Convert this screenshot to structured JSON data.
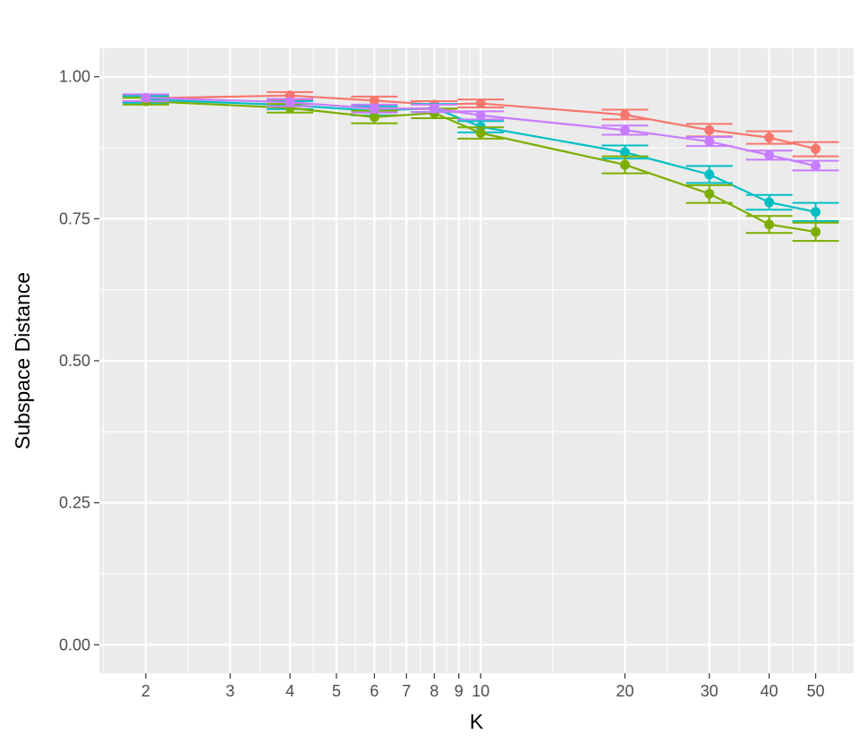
{
  "chart_data": {
    "type": "line",
    "xlabel": "K",
    "ylabel": "Subspace Distance",
    "x_scale": "log",
    "xlim": [
      1.6,
      60
    ],
    "ylim": [
      -0.05,
      1.05
    ],
    "x_ticks": [
      2,
      3,
      4,
      5,
      6,
      7,
      8,
      9,
      10,
      20,
      30,
      40,
      50
    ],
    "x_tick_labels": [
      "2",
      "3",
      "4",
      "5",
      "6",
      "7",
      "8",
      "9",
      "10",
      "20",
      "30",
      "40",
      "50"
    ],
    "y_ticks": [
      0.0,
      0.25,
      0.5,
      0.75,
      1.0
    ],
    "y_tick_labels": [
      "0.00",
      "0.25",
      "0.50",
      "0.75",
      "1.00"
    ],
    "grid": true,
    "legend": "none",
    "x": [
      2,
      4,
      6,
      8,
      10,
      20,
      30,
      40,
      50
    ],
    "series": [
      {
        "color": "#F8766D",
        "values": [
          0.962,
          0.967,
          0.958,
          0.951,
          0.953,
          0.933,
          0.906,
          0.893,
          0.873
        ],
        "err_low": [
          0.956,
          0.96,
          0.948,
          0.943,
          0.946,
          0.925,
          0.895,
          0.882,
          0.86
        ],
        "err_high": [
          0.968,
          0.973,
          0.965,
          0.957,
          0.96,
          0.942,
          0.917,
          0.904,
          0.885
        ]
      },
      {
        "color": "#00BFC4",
        "values": [
          0.96,
          0.95,
          0.94,
          0.945,
          0.912,
          0.867,
          0.828,
          0.779,
          0.762
        ],
        "err_low": [
          0.954,
          0.943,
          0.932,
          0.938,
          0.902,
          0.856,
          0.813,
          0.766,
          0.746
        ],
        "err_high": [
          0.966,
          0.957,
          0.948,
          0.952,
          0.922,
          0.879,
          0.843,
          0.792,
          0.778
        ]
      },
      {
        "color": "#7CAE00",
        "values": [
          0.957,
          0.945,
          0.929,
          0.936,
          0.901,
          0.845,
          0.794,
          0.74,
          0.727
        ],
        "err_low": [
          0.951,
          0.937,
          0.918,
          0.927,
          0.891,
          0.83,
          0.778,
          0.725,
          0.711
        ],
        "err_high": [
          0.963,
          0.952,
          0.94,
          0.944,
          0.911,
          0.86,
          0.809,
          0.755,
          0.743
        ]
      },
      {
        "color": "#C77CFF",
        "values": [
          0.963,
          0.955,
          0.944,
          0.944,
          0.932,
          0.906,
          0.886,
          0.862,
          0.843
        ],
        "err_low": [
          0.957,
          0.948,
          0.937,
          0.938,
          0.925,
          0.898,
          0.878,
          0.854,
          0.835
        ],
        "err_high": [
          0.969,
          0.961,
          0.951,
          0.951,
          0.939,
          0.914,
          0.894,
          0.87,
          0.852
        ]
      }
    ]
  }
}
